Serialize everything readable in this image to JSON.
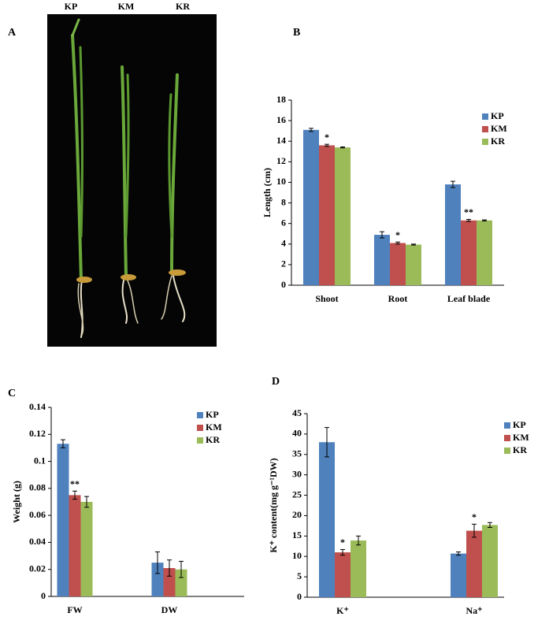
{
  "photo": {
    "panel": "A",
    "labels": [
      "KP",
      "KM",
      "KR"
    ]
  },
  "chart_data": [
    {
      "type": "bar",
      "panel": "B",
      "y_label": "Length (cm)",
      "categories": [
        "Shoot",
        "Root",
        "Leaf blade"
      ],
      "series": [
        {
          "name": "KP",
          "color": "#4f81bd",
          "values": [
            15.1,
            4.9,
            9.8
          ],
          "errors": [
            0.15,
            0.3,
            0.3
          ]
        },
        {
          "name": "KM",
          "color": "#c0504d",
          "values": [
            13.6,
            4.1,
            6.3
          ],
          "errors": [
            0.1,
            0.1,
            0.1
          ],
          "significance": [
            "*",
            "*",
            "**"
          ]
        },
        {
          "name": "KR",
          "color": "#9bbb59",
          "values": [
            13.4,
            3.95,
            6.3
          ],
          "errors": [
            0.05,
            0.05,
            0.05
          ]
        }
      ],
      "ylim": [
        0,
        18
      ],
      "yticks": [
        0,
        2,
        4,
        6,
        8,
        10,
        12,
        14,
        16,
        18
      ],
      "legend": "right"
    },
    {
      "type": "bar",
      "panel": "C",
      "y_label": "Weight (g)",
      "categories": [
        "FW",
        "DW"
      ],
      "series": [
        {
          "name": "KP",
          "color": "#4f81bd",
          "values": [
            0.113,
            0.025
          ],
          "errors": [
            0.003,
            0.008
          ]
        },
        {
          "name": "KM",
          "color": "#c0504d",
          "values": [
            0.075,
            0.021
          ],
          "errors": [
            0.003,
            0.006
          ],
          "significance": [
            "**",
            null
          ]
        },
        {
          "name": "KR",
          "color": "#9bbb59",
          "values": [
            0.07,
            0.02
          ],
          "errors": [
            0.004,
            0.006
          ]
        }
      ],
      "ylim": [
        0,
        0.14
      ],
      "yticks": [
        0,
        0.02,
        0.04,
        0.06,
        0.08,
        0.1,
        0.12,
        0.14
      ],
      "legend": "right"
    },
    {
      "type": "bar",
      "panel": "D",
      "y_label": "K⁺ content(mg g⁻¹DW)",
      "categories": [
        "K⁺",
        "Na⁺"
      ],
      "series": [
        {
          "name": "KP",
          "color": "#4f81bd",
          "values": [
            38,
            10.7
          ],
          "errors": [
            3.6,
            0.4
          ]
        },
        {
          "name": "KM",
          "color": "#c0504d",
          "values": [
            11,
            16.3
          ],
          "errors": [
            0.7,
            1.6
          ],
          "significance": [
            "*",
            "*"
          ]
        },
        {
          "name": "KR",
          "color": "#9bbb59",
          "values": [
            13.9,
            17.7
          ],
          "errors": [
            1.1,
            0.6
          ]
        }
      ],
      "ylim": [
        0,
        45
      ],
      "yticks": [
        0,
        5,
        10,
        15,
        20,
        25,
        30,
        35,
        40,
        45
      ],
      "legend": "right"
    }
  ]
}
